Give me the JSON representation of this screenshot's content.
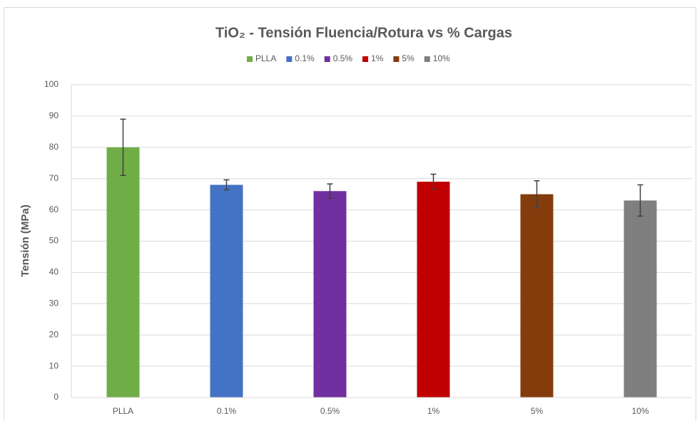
{
  "chart_data": {
    "type": "bar",
    "title": "TiO₂ - Tensión Fluencia/Rotura vs % Cargas",
    "y_label": "Tensión (MPa)",
    "categories": [
      "PLLA",
      "0.1%",
      "0.5%",
      "1%",
      "5%",
      "10%"
    ],
    "values": [
      80,
      68,
      66,
      69,
      65,
      63
    ],
    "errors": [
      9,
      1.6,
      2.3,
      2.4,
      4.3,
      5
    ],
    "colors": [
      "#70ad47",
      "#4472c4",
      "#7030a0",
      "#c00000",
      "#843c0c",
      "#7f7f7f"
    ],
    "ylim": [
      0,
      100
    ],
    "yticks": [
      0,
      10,
      20,
      30,
      40,
      50,
      60,
      70,
      80,
      90,
      100
    ],
    "grid": true,
    "legend": "top"
  }
}
